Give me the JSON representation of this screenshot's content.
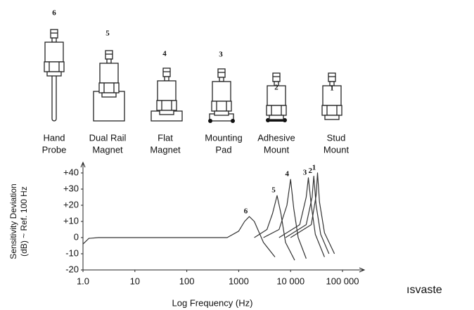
{
  "mounts": [
    {
      "number": 6,
      "label": [
        "Hand",
        "Probe"
      ]
    },
    {
      "number": 5,
      "label": [
        "Dual Rail",
        "Magnet"
      ]
    },
    {
      "number": 4,
      "label": [
        "Flat",
        "Magnet"
      ]
    },
    {
      "number": 3,
      "label": [
        "Mounting",
        "Pad"
      ]
    },
    {
      "number": 2,
      "label": [
        "Adhesive",
        "Mount"
      ]
    },
    {
      "number": 1,
      "label": [
        "Stud",
        "Mount"
      ]
    }
  ],
  "chart_data": {
    "type": "line",
    "ylabel": [
      "Sensitivity Deviation",
      "(dB) ~ Ref. 100 Hz"
    ],
    "xlabel": "Log Frequency (Hz)",
    "xscale": "log",
    "xlim": [
      1,
      100000
    ],
    "xticks": [
      {
        "value": 1,
        "label": "1.0"
      },
      10,
      100,
      1000,
      {
        "value": 10000,
        "label": "10 000"
      },
      {
        "value": 100000,
        "label": "100 000"
      }
    ],
    "ylim": [
      -20,
      40
    ],
    "yticks": [
      {
        "value": 40,
        "label": "+40"
      },
      {
        "value": 30,
        "label": "+30"
      },
      {
        "value": 20,
        "label": "+20"
      },
      {
        "value": 10,
        "label": "+10"
      },
      0,
      -10,
      -20
    ],
    "series": [
      {
        "name": "6",
        "color": "#333333",
        "x": [
          1,
          1.3,
          2,
          600,
          1000,
          1300,
          1600,
          2000,
          3000,
          5000
        ],
        "values": [
          -4,
          -0.5,
          0,
          0,
          4,
          10,
          13,
          10,
          -3,
          -12
        ]
      },
      {
        "name": "5",
        "color": "#333333",
        "x": [
          2000,
          3500,
          4500,
          5500,
          6500,
          8000,
          12000
        ],
        "values": [
          0,
          5,
          15,
          26,
          15,
          -3,
          -14
        ]
      },
      {
        "name": "4",
        "color": "#333333",
        "x": [
          3000,
          6000,
          8500,
          10000,
          11500,
          14000,
          20000
        ],
        "values": [
          0,
          5,
          20,
          36,
          18,
          0,
          -13
        ]
      },
      {
        "name": "3",
        "color": "#333333",
        "x": [
          6000,
          15000,
          20000,
          22000,
          25000,
          30000,
          45000
        ],
        "values": [
          0,
          8,
          25,
          37,
          20,
          2,
          -12
        ]
      },
      {
        "name": "2",
        "color": "#333333",
        "x": [
          8000,
          20000,
          26000,
          28000,
          31000,
          38000,
          55000
        ],
        "values": [
          0,
          8,
          25,
          38,
          20,
          2,
          -10
        ]
      },
      {
        "name": "1",
        "color": "#333333",
        "x": [
          10000,
          25000,
          31000,
          33000,
          36000,
          45000,
          70000
        ],
        "values": [
          0,
          8,
          26,
          40,
          22,
          3,
          -10
        ]
      }
    ]
  },
  "caption": "ısvaste"
}
